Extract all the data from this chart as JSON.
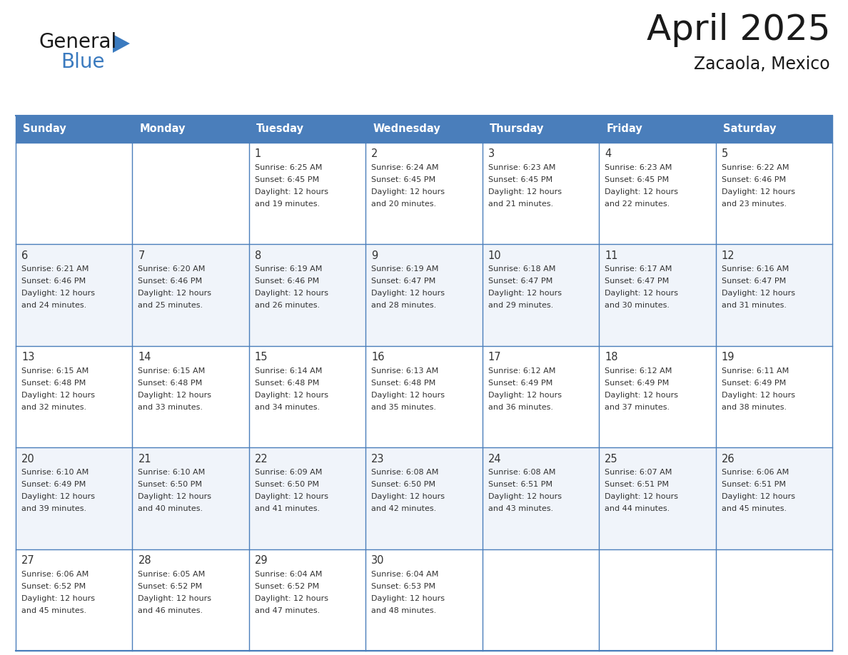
{
  "title": "April 2025",
  "subtitle": "Zacaola, Mexico",
  "days_of_week": [
    "Sunday",
    "Monday",
    "Tuesday",
    "Wednesday",
    "Thursday",
    "Friday",
    "Saturday"
  ],
  "header_bg": "#4A7EBB",
  "header_text": "#FFFFFF",
  "cell_bg_odd": "#FFFFFF",
  "cell_bg_even": "#F0F4FA",
  "border_color": "#4A7EBB",
  "row_divider_color": "#4A7EBB",
  "text_color": "#333333",
  "logo_general_color": "#1a1a1a",
  "logo_blue_color": "#3A7ABF",
  "logo_triangle_color": "#3A7ABF",
  "calendar_data": [
    [
      null,
      null,
      {
        "day": 1,
        "sunrise": "6:25 AM",
        "sunset": "6:45 PM",
        "daylight": "12 hours and 19 minutes."
      },
      {
        "day": 2,
        "sunrise": "6:24 AM",
        "sunset": "6:45 PM",
        "daylight": "12 hours and 20 minutes."
      },
      {
        "day": 3,
        "sunrise": "6:23 AM",
        "sunset": "6:45 PM",
        "daylight": "12 hours and 21 minutes."
      },
      {
        "day": 4,
        "sunrise": "6:23 AM",
        "sunset": "6:45 PM",
        "daylight": "12 hours and 22 minutes."
      },
      {
        "day": 5,
        "sunrise": "6:22 AM",
        "sunset": "6:46 PM",
        "daylight": "12 hours and 23 minutes."
      }
    ],
    [
      {
        "day": 6,
        "sunrise": "6:21 AM",
        "sunset": "6:46 PM",
        "daylight": "12 hours and 24 minutes."
      },
      {
        "day": 7,
        "sunrise": "6:20 AM",
        "sunset": "6:46 PM",
        "daylight": "12 hours and 25 minutes."
      },
      {
        "day": 8,
        "sunrise": "6:19 AM",
        "sunset": "6:46 PM",
        "daylight": "12 hours and 26 minutes."
      },
      {
        "day": 9,
        "sunrise": "6:19 AM",
        "sunset": "6:47 PM",
        "daylight": "12 hours and 28 minutes."
      },
      {
        "day": 10,
        "sunrise": "6:18 AM",
        "sunset": "6:47 PM",
        "daylight": "12 hours and 29 minutes."
      },
      {
        "day": 11,
        "sunrise": "6:17 AM",
        "sunset": "6:47 PM",
        "daylight": "12 hours and 30 minutes."
      },
      {
        "day": 12,
        "sunrise": "6:16 AM",
        "sunset": "6:47 PM",
        "daylight": "12 hours and 31 minutes."
      }
    ],
    [
      {
        "day": 13,
        "sunrise": "6:15 AM",
        "sunset": "6:48 PM",
        "daylight": "12 hours and 32 minutes."
      },
      {
        "day": 14,
        "sunrise": "6:15 AM",
        "sunset": "6:48 PM",
        "daylight": "12 hours and 33 minutes."
      },
      {
        "day": 15,
        "sunrise": "6:14 AM",
        "sunset": "6:48 PM",
        "daylight": "12 hours and 34 minutes."
      },
      {
        "day": 16,
        "sunrise": "6:13 AM",
        "sunset": "6:48 PM",
        "daylight": "12 hours and 35 minutes."
      },
      {
        "day": 17,
        "sunrise": "6:12 AM",
        "sunset": "6:49 PM",
        "daylight": "12 hours and 36 minutes."
      },
      {
        "day": 18,
        "sunrise": "6:12 AM",
        "sunset": "6:49 PM",
        "daylight": "12 hours and 37 minutes."
      },
      {
        "day": 19,
        "sunrise": "6:11 AM",
        "sunset": "6:49 PM",
        "daylight": "12 hours and 38 minutes."
      }
    ],
    [
      {
        "day": 20,
        "sunrise": "6:10 AM",
        "sunset": "6:49 PM",
        "daylight": "12 hours and 39 minutes."
      },
      {
        "day": 21,
        "sunrise": "6:10 AM",
        "sunset": "6:50 PM",
        "daylight": "12 hours and 40 minutes."
      },
      {
        "day": 22,
        "sunrise": "6:09 AM",
        "sunset": "6:50 PM",
        "daylight": "12 hours and 41 minutes."
      },
      {
        "day": 23,
        "sunrise": "6:08 AM",
        "sunset": "6:50 PM",
        "daylight": "12 hours and 42 minutes."
      },
      {
        "day": 24,
        "sunrise": "6:08 AM",
        "sunset": "6:51 PM",
        "daylight": "12 hours and 43 minutes."
      },
      {
        "day": 25,
        "sunrise": "6:07 AM",
        "sunset": "6:51 PM",
        "daylight": "12 hours and 44 minutes."
      },
      {
        "day": 26,
        "sunrise": "6:06 AM",
        "sunset": "6:51 PM",
        "daylight": "12 hours and 45 minutes."
      }
    ],
    [
      {
        "day": 27,
        "sunrise": "6:06 AM",
        "sunset": "6:52 PM",
        "daylight": "12 hours and 45 minutes."
      },
      {
        "day": 28,
        "sunrise": "6:05 AM",
        "sunset": "6:52 PM",
        "daylight": "12 hours and 46 minutes."
      },
      {
        "day": 29,
        "sunrise": "6:04 AM",
        "sunset": "6:52 PM",
        "daylight": "12 hours and 47 minutes."
      },
      {
        "day": 30,
        "sunrise": "6:04 AM",
        "sunset": "6:53 PM",
        "daylight": "12 hours and 48 minutes."
      },
      null,
      null,
      null
    ]
  ]
}
